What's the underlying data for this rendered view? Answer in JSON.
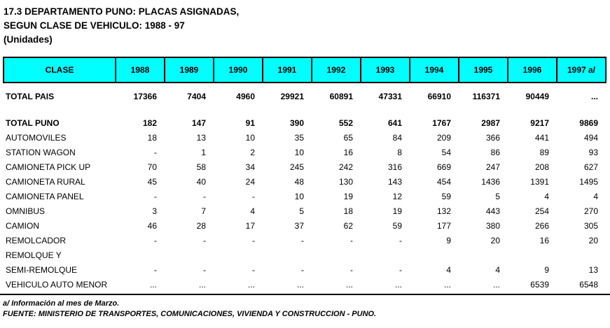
{
  "title": {
    "line1": "17.3  DEPARTAMENTO PUNO: PLACAS ASIGNADAS,",
    "line2": "SEGUN CLASE DE VEHICULO: 1988 - 97",
    "line3": "(Unidades)"
  },
  "colors": {
    "header_bg": "#00FFFF",
    "border": "#000000",
    "text": "#000000",
    "background": "#FFFFFF"
  },
  "table": {
    "header": [
      "CLASE",
      "1988",
      "1989",
      "1990",
      "1991",
      "1992",
      "1993",
      "1994",
      "1995",
      "1996",
      "1997 a/"
    ],
    "rows": [
      {
        "label": "TOTAL PAIS",
        "bold": true,
        "values": [
          "17366",
          "7404",
          "4960",
          "29921",
          "60891",
          "47331",
          "66910",
          "116371",
          "90449",
          "..."
        ]
      },
      {
        "label": "",
        "spacer": true,
        "values": [
          "",
          "",
          "",
          "",
          "",
          "",
          "",
          "",
          "",
          ""
        ]
      },
      {
        "label": "TOTAL PUNO",
        "bold": true,
        "values": [
          "182",
          "147",
          "91",
          "390",
          "552",
          "641",
          "1767",
          "2987",
          "9217",
          "9869"
        ]
      },
      {
        "label": "AUTOMOVILES",
        "values": [
          "18",
          "13",
          "10",
          "35",
          "65",
          "84",
          "209",
          "366",
          "441",
          "494"
        ]
      },
      {
        "label": "STATION WAGON",
        "values": [
          "-",
          "1",
          "2",
          "10",
          "16",
          "8",
          "54",
          "86",
          "89",
          "93"
        ]
      },
      {
        "label": "CAMIONETA PICK UP",
        "values": [
          "70",
          "58",
          "34",
          "245",
          "242",
          "316",
          "669",
          "247",
          "208",
          "627"
        ]
      },
      {
        "label": "CAMIONETA RURAL",
        "values": [
          "45",
          "40",
          "24",
          "48",
          "130",
          "143",
          "454",
          "1436",
          "1391",
          "1495"
        ]
      },
      {
        "label": "CAMIONETA PANEL",
        "values": [
          "-",
          "-",
          "-",
          "10",
          "19",
          "12",
          "59",
          "5",
          "4",
          "4"
        ]
      },
      {
        "label": "OMNIBUS",
        "values": [
          "3",
          "7",
          "4",
          "5",
          "18",
          "19",
          "132",
          "443",
          "254",
          "270"
        ]
      },
      {
        "label": "CAMION",
        "values": [
          "46",
          "28",
          "17",
          "37",
          "62",
          "59",
          "177",
          "380",
          "266",
          "305"
        ]
      },
      {
        "label": "REMOLCADOR",
        "values": [
          "-",
          "-",
          "-",
          "-",
          "-",
          "-",
          "9",
          "20",
          "16",
          "20"
        ]
      },
      {
        "label": "REMOLQUE Y",
        "values": [
          "",
          "",
          "",
          "",
          "",
          "",
          "",
          "",
          "",
          ""
        ]
      },
      {
        "label": "SEMI-REMOLQUE",
        "values": [
          "-",
          "-",
          "-",
          "-",
          "-",
          "-",
          "4",
          "4",
          "9",
          "13"
        ]
      },
      {
        "label": "VEHICULO AUTO MENOR",
        "values": [
          "...",
          "...",
          "...",
          "...",
          "...",
          "...",
          "...",
          "...",
          "6539",
          "6548"
        ]
      }
    ]
  },
  "footnotes": {
    "note": "a/ Información al mes de Marzo.",
    "source": "FUENTE: MINISTERIO DE TRANSPORTES, COMUNICACIONES, VIVIENDA Y CONSTRUCCION - PUNO."
  }
}
